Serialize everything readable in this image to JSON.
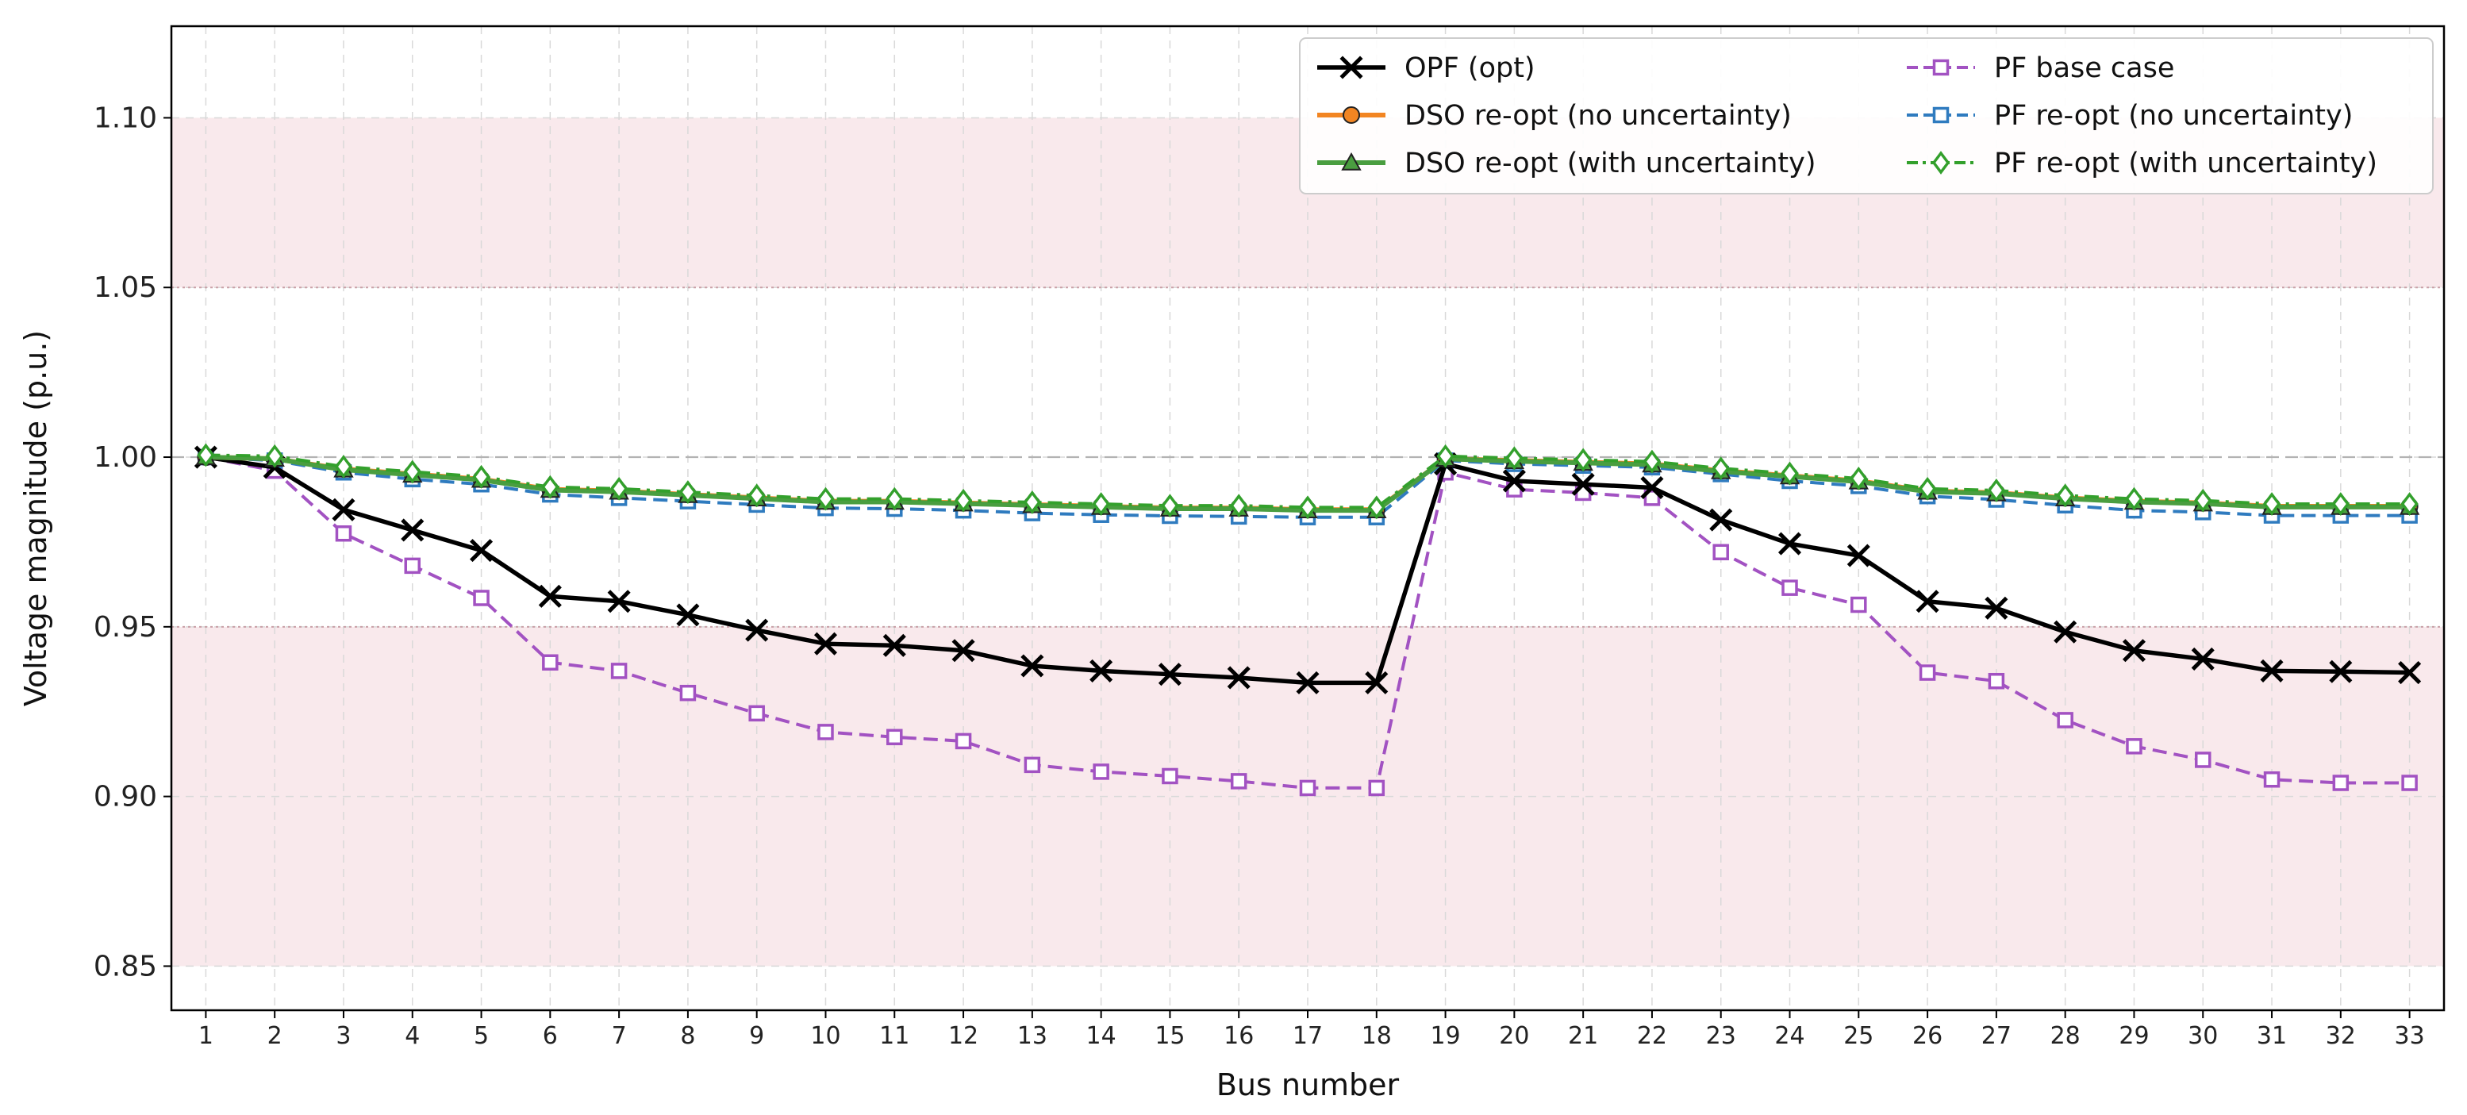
{
  "chart_data": {
    "type": "line",
    "title": "",
    "xlabel": "Bus number",
    "ylabel": "Voltage magnitude (p.u.)",
    "xlim": [
      0.5,
      33.5
    ],
    "ylim": [
      0.837,
      1.127
    ],
    "x": [
      1,
      2,
      3,
      4,
      5,
      6,
      7,
      8,
      9,
      10,
      11,
      12,
      13,
      14,
      15,
      16,
      17,
      18,
      19,
      20,
      21,
      22,
      23,
      24,
      25,
      26,
      27,
      28,
      29,
      30,
      31,
      32,
      33
    ],
    "x_tick_labels": [
      "1",
      "2",
      "3",
      "4",
      "5",
      "6",
      "7",
      "8",
      "9",
      "10",
      "11",
      "12",
      "13",
      "14",
      "15",
      "16",
      "17",
      "18",
      "19",
      "20",
      "21",
      "22",
      "23",
      "24",
      "25",
      "26",
      "27",
      "28",
      "29",
      "30",
      "31",
      "32",
      "33"
    ],
    "y_ticks": [
      0.85,
      0.9,
      0.95,
      1.0,
      1.05,
      1.1
    ],
    "y_tick_labels": [
      "0.85",
      "0.90",
      "0.95",
      "1.00",
      "1.05",
      "1.10"
    ],
    "grid": true,
    "violation_bands": [
      [
        0.85,
        0.95
      ],
      [
        1.05,
        1.1
      ]
    ],
    "reference_lines": [
      0.95,
      1.0,
      1.05
    ],
    "legend_position": "top-right",
    "legend_columns": 2,
    "series": [
      {
        "name": "OPF (opt)",
        "color": "#000000",
        "marker": "x",
        "linestyle": "solid",
        "values": [
          1.0,
          0.997,
          0.9845,
          0.9785,
          0.9725,
          0.959,
          0.9575,
          0.9535,
          0.949,
          0.945,
          0.9445,
          0.943,
          0.9385,
          0.937,
          0.936,
          0.935,
          0.9335,
          0.9335,
          0.998,
          0.993,
          0.992,
          0.991,
          0.9815,
          0.9745,
          0.971,
          0.9575,
          0.9555,
          0.9485,
          0.943,
          0.9405,
          0.937,
          0.9368,
          0.9365
        ]
      },
      {
        "name": "DSO re-opt (no uncertainty)",
        "color": "#f28522",
        "marker": "o",
        "linestyle": "solid",
        "values": [
          1.0,
          0.9995,
          0.9965,
          0.995,
          0.9935,
          0.9905,
          0.99,
          0.989,
          0.988,
          0.987,
          0.987,
          0.9865,
          0.986,
          0.9855,
          0.985,
          0.985,
          0.9845,
          0.9845,
          0.9995,
          0.999,
          0.9985,
          0.998,
          0.996,
          0.9945,
          0.993,
          0.99,
          0.9895,
          0.988,
          0.987,
          0.9865,
          0.9855,
          0.9855,
          0.9855
        ]
      },
      {
        "name": "DSO re-opt (with uncertainty)",
        "color": "#4a9e40",
        "marker": "^",
        "linestyle": "solid",
        "values": [
          1.0,
          0.9995,
          0.9963,
          0.9948,
          0.9933,
          0.9903,
          0.9898,
          0.9888,
          0.9878,
          0.9868,
          0.9868,
          0.9863,
          0.9858,
          0.9853,
          0.9848,
          0.9848,
          0.9843,
          0.9843,
          0.9995,
          0.9988,
          0.9983,
          0.9978,
          0.9958,
          0.9943,
          0.9928,
          0.9898,
          0.9893,
          0.9878,
          0.9868,
          0.9863,
          0.9853,
          0.9853,
          0.9853
        ]
      },
      {
        "name": "PF base case",
        "color": "#a252c2",
        "marker": "s-open",
        "linestyle": "dashed",
        "values": [
          1.0,
          0.996,
          0.9775,
          0.968,
          0.9585,
          0.9395,
          0.937,
          0.9305,
          0.9245,
          0.919,
          0.9175,
          0.9163,
          0.9093,
          0.9073,
          0.906,
          0.9045,
          0.9025,
          0.9025,
          0.9955,
          0.9905,
          0.9895,
          0.988,
          0.972,
          0.9615,
          0.9565,
          0.9365,
          0.934,
          0.9225,
          0.9148,
          0.9108,
          0.905,
          0.904,
          0.904
        ]
      },
      {
        "name": "PF re-opt (no uncertainty)",
        "color": "#2f7bbf",
        "marker": "s-open",
        "linestyle": "dashed",
        "values": [
          1.0,
          0.999,
          0.9955,
          0.9935,
          0.992,
          0.989,
          0.988,
          0.987,
          0.986,
          0.985,
          0.9848,
          0.9843,
          0.9835,
          0.983,
          0.9827,
          0.9825,
          0.9823,
          0.9823,
          0.999,
          0.998,
          0.9975,
          0.997,
          0.995,
          0.993,
          0.9915,
          0.9885,
          0.9875,
          0.9858,
          0.9843,
          0.9838,
          0.9828,
          0.9828,
          0.9828
        ]
      },
      {
        "name": "PF re-opt (with uncertainty)",
        "color": "#33a02c",
        "marker": "d-open",
        "linestyle": "dashdot",
        "values": [
          1.0006,
          1.0003,
          0.9972,
          0.9957,
          0.9942,
          0.9912,
          0.9907,
          0.9897,
          0.9887,
          0.9877,
          0.9877,
          0.9872,
          0.9867,
          0.9862,
          0.9857,
          0.9857,
          0.9852,
          0.9852,
          1.0003,
          0.9997,
          0.9992,
          0.9987,
          0.9967,
          0.9952,
          0.9937,
          0.9907,
          0.9902,
          0.9887,
          0.9877,
          0.9872,
          0.9862,
          0.9862,
          0.9862
        ]
      }
    ]
  }
}
